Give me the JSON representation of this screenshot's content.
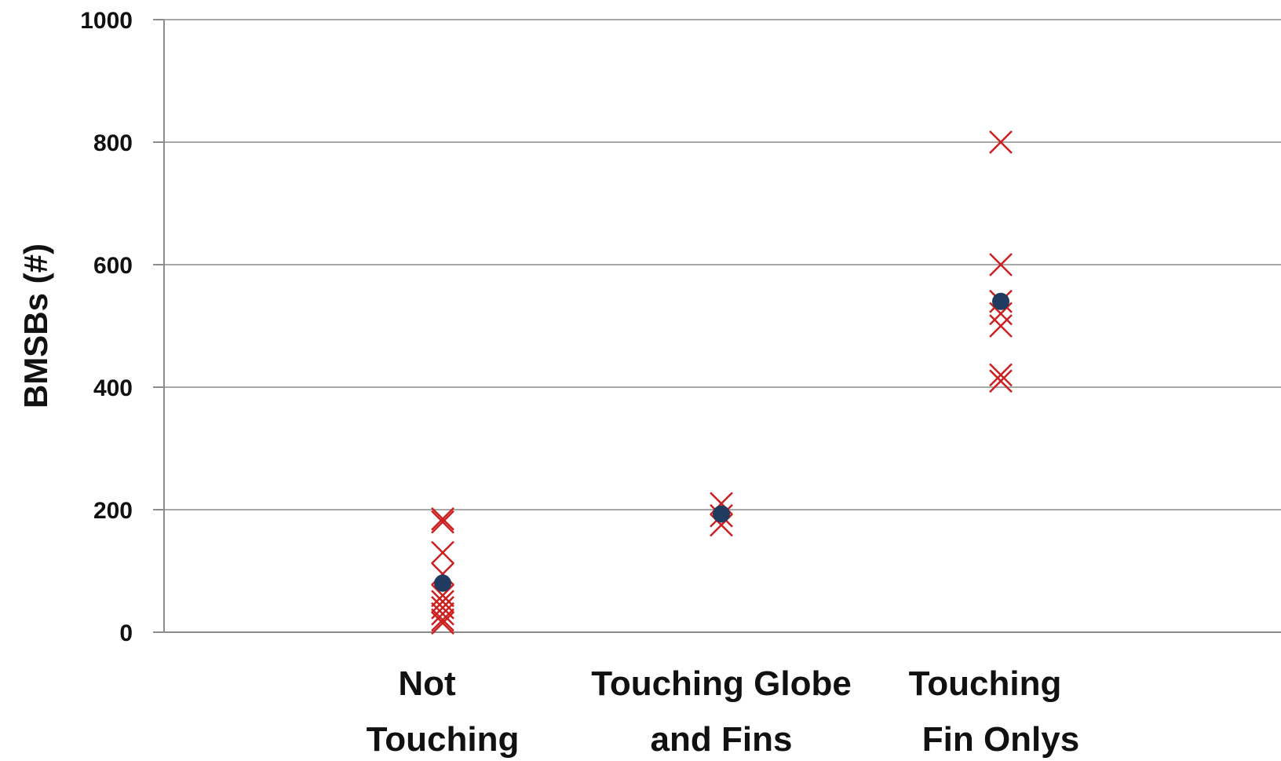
{
  "chart_data": {
    "type": "scatter",
    "title": "",
    "xlabel": "",
    "ylabel": "BMSBs (#)",
    "ylim": [
      0,
      1000
    ],
    "yticks": [
      0,
      200,
      400,
      600,
      800,
      1000
    ],
    "ytick_labels": [
      "0",
      "200",
      "400",
      "600",
      "800",
      "1000"
    ],
    "grid": true,
    "legend": "none",
    "categories": [
      [
        "Not",
        "Touching"
      ],
      [
        "Touching Globe",
        "and Fins"
      ],
      [
        "Touching",
        "Fin Onlys"
      ]
    ],
    "series": [
      {
        "marker": "x",
        "color": "#cc1f1f",
        "values": [
          [
            185,
            180,
            130,
            95,
            60,
            50,
            40,
            30,
            20,
            15
          ],
          [
            210,
            190,
            175
          ],
          [
            800,
            600,
            540,
            520,
            500,
            420,
            410
          ]
        ]
      },
      {
        "marker": "circle",
        "color": "#1f3b5f",
        "values": [
          [
            80
          ],
          [
            193
          ],
          [
            540
          ]
        ]
      }
    ]
  }
}
